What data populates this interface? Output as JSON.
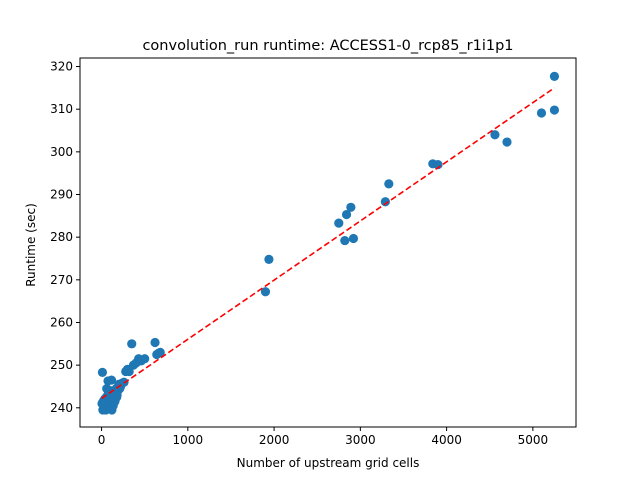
{
  "chart_data": {
    "type": "scatter",
    "title": "convolution_run runtime: ACCESS1-0_rcp85_r1i1p1",
    "xlabel": "Number of upstream grid cells",
    "ylabel": "Runtime (sec)",
    "xlim": [
      -250,
      5500
    ],
    "ylim": [
      235.5,
      322
    ],
    "xticks": [
      0,
      1000,
      2000,
      3000,
      4000,
      5000
    ],
    "yticks": [
      240,
      250,
      260,
      270,
      280,
      290,
      300,
      310,
      320
    ],
    "grid": false,
    "colors": {
      "points": "#1f77b4",
      "fit": "#ff0000",
      "axes": "#000000"
    },
    "series": [
      {
        "kind": "points",
        "x": [
          5,
          10,
          15,
          20,
          25,
          30,
          35,
          40,
          45,
          50,
          55,
          60,
          65,
          70,
          75,
          80,
          85,
          90,
          95,
          100,
          105,
          110,
          115,
          120,
          125,
          130,
          135,
          140,
          145,
          150,
          155,
          160,
          165,
          170,
          175,
          180,
          190,
          200,
          210,
          220,
          240,
          260,
          280,
          300,
          320,
          350,
          370,
          400,
          430,
          460,
          500,
          620,
          640,
          660,
          680,
          1900,
          1940,
          2750,
          2820,
          2840,
          2890,
          2920,
          3290,
          3330,
          3840,
          3900,
          4560,
          4700,
          5100,
          5250,
          5250
        ],
        "y": [
          241.0,
          248.3,
          239.5,
          241.5,
          240.5,
          239.5,
          242.0,
          240.0,
          241.2,
          239.5,
          242.5,
          244.5,
          240.0,
          241.5,
          246.3,
          243.5,
          240.5,
          241.8,
          242.5,
          243.0,
          244.0,
          241.0,
          246.5,
          239.5,
          242.8,
          243.5,
          240.5,
          244.0,
          242.0,
          242.5,
          241.5,
          242.0,
          243.0,
          244.5,
          242.5,
          243.0,
          244.0,
          245.5,
          244.5,
          245.0,
          245.8,
          246.0,
          248.5,
          249.0,
          248.5,
          255.0,
          250.0,
          250.5,
          251.5,
          251.0,
          251.5,
          255.3,
          252.5,
          252.8,
          253.0,
          267.2,
          274.8,
          283.3,
          279.2,
          285.3,
          287.0,
          279.7,
          288.3,
          292.5,
          297.2,
          297.0,
          304.0,
          302.3,
          309.1,
          317.7,
          309.8
        ]
      },
      {
        "kind": "fit-line",
        "x": [
          0,
          5250
        ],
        "y": [
          242.2,
          315.0
        ]
      }
    ]
  }
}
